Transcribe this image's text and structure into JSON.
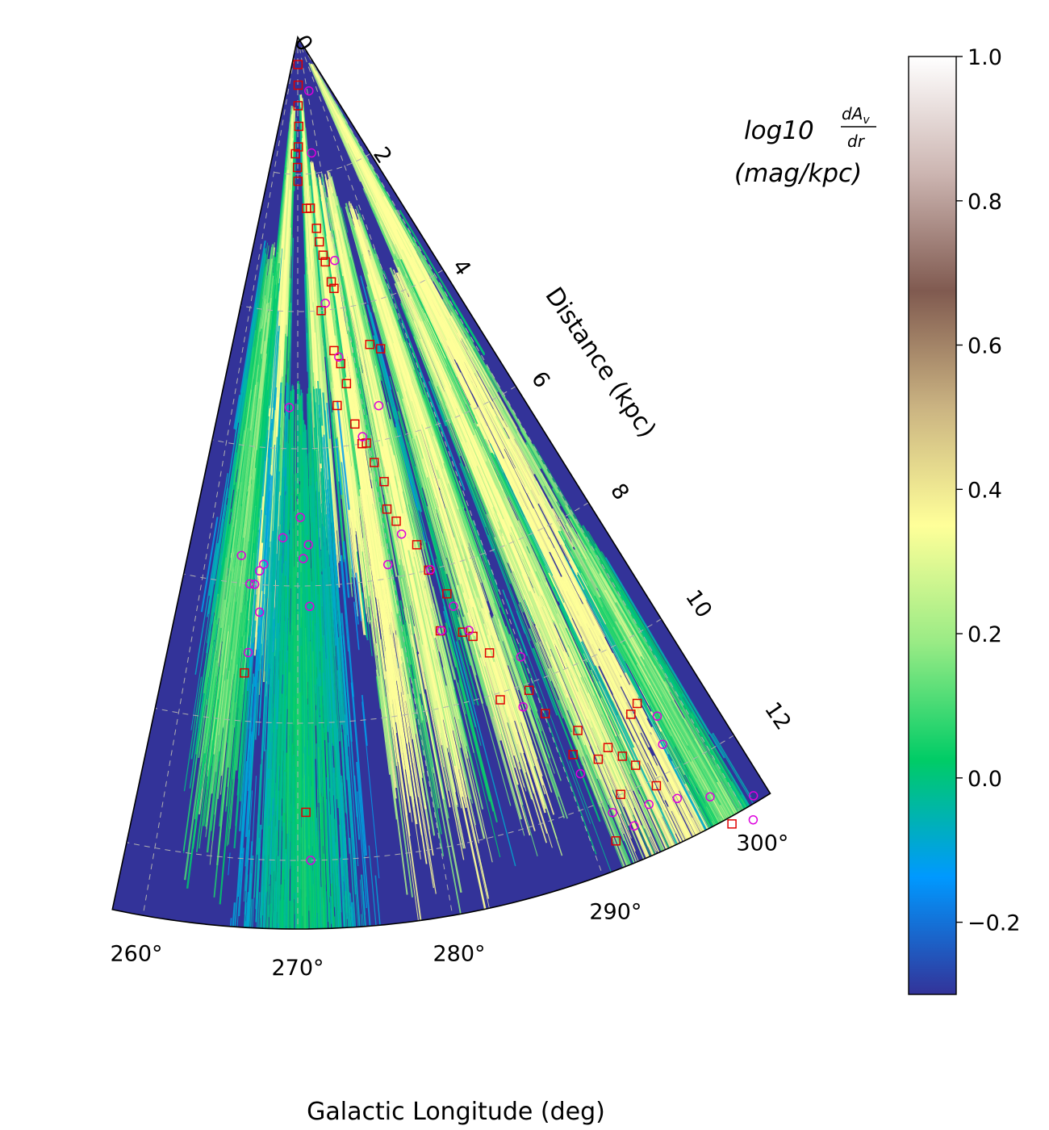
{
  "chart_data": {
    "type": "heatmap",
    "projection": "polar-wedge",
    "xlabel": "Galactic Longitude (deg)",
    "radial_label": "Distance (kpc)",
    "longitude_range": [
      258,
      302
    ],
    "distance_range": [
      0,
      13
    ],
    "longitude_ticks": [
      "260°",
      "270°",
      "280°",
      "290°",
      "300°"
    ],
    "distance_ticks": [
      "0",
      "2",
      "4",
      "6",
      "8",
      "10",
      "12"
    ],
    "grid": true,
    "colorbar": {
      "title_main": "log10",
      "title_frac_num": "dA",
      "title_frac_sub": "v",
      "title_frac_den": "dr",
      "units": "(mag/kpc)",
      "range": [
        -0.3,
        1.0
      ],
      "tick_labels": [
        "1.0",
        "0.8",
        "0.6",
        "0.4",
        "0.2",
        "0.0",
        "−0.2"
      ],
      "colormap": "terrain",
      "colors": [
        "#333399",
        "#0099ff",
        "#00cc66",
        "#99eb85",
        "#ffff99",
        "#cbb482",
        "#805a50",
        "#ccb5b1",
        "#ffffff"
      ]
    },
    "square_markers": {
      "color": "#e00000",
      "points": [
        [
          270.5,
          0.4
        ],
        [
          270.5,
          0.7
        ],
        [
          270.3,
          1.0
        ],
        [
          270.7,
          1.3
        ],
        [
          270.3,
          1.6
        ],
        [
          268.9,
          1.7
        ],
        [
          269.9,
          1.9
        ],
        [
          270.1,
          2.1
        ],
        [
          272.9,
          2.5
        ],
        [
          274.2,
          2.5
        ],
        [
          275.6,
          2.8
        ],
        [
          276.0,
          3.0
        ],
        [
          276.6,
          3.2
        ],
        [
          277.0,
          3.3
        ],
        [
          277.8,
          3.6
        ],
        [
          278.2,
          3.7
        ],
        [
          274.9,
          4.0
        ],
        [
          276.6,
          4.6
        ],
        [
          277.5,
          4.8
        ],
        [
          278.0,
          5.1
        ],
        [
          276.1,
          5.4
        ],
        [
          278.4,
          5.7
        ],
        [
          279.0,
          6.0
        ],
        [
          279.6,
          6.0
        ],
        [
          280.2,
          6.3
        ],
        [
          281.0,
          6.6
        ],
        [
          280.7,
          7.0
        ],
        [
          281.5,
          7.2
        ],
        [
          283.2,
          7.6
        ],
        [
          283.8,
          8.0
        ],
        [
          285.0,
          8.4
        ],
        [
          283.5,
          8.9
        ],
        [
          285.5,
          9.0
        ],
        [
          286.3,
          9.1
        ],
        [
          287.3,
          9.4
        ],
        [
          287.0,
          10.1
        ],
        [
          289.5,
          10.1
        ],
        [
          290.1,
          10.5
        ],
        [
          291.0,
          11.2
        ],
        [
          292.0,
          10.9
        ],
        [
          292.6,
          11.4
        ],
        [
          293.6,
          11.3
        ],
        [
          294.3,
          11.5
        ],
        [
          294.9,
          11.7
        ],
        [
          295.6,
          12.1
        ],
        [
          296.2,
          11.0
        ],
        [
          297.0,
          10.9
        ],
        [
          298.9,
          13.1
        ],
        [
          265.2,
          9.3
        ],
        [
          270.6,
          11.3
        ],
        [
          291.6,
          12.6
        ],
        [
          293.1,
          12.0
        ],
        [
          283.2,
          4.6
        ],
        [
          284.9,
          4.7
        ]
      ]
    },
    "circle_markers": {
      "color": "#dd00dd",
      "points": [
        [
          279.4,
          3.3
        ],
        [
          275.9,
          3.9
        ],
        [
          277.3,
          4.7
        ],
        [
          268.7,
          5.4
        ],
        [
          279.2,
          5.9
        ],
        [
          282.4,
          5.5
        ],
        [
          268.3,
          7.3
        ],
        [
          265.0,
          8.0
        ],
        [
          266.3,
          7.7
        ],
        [
          265.9,
          7.8
        ],
        [
          265.5,
          8.0
        ],
        [
          266.2,
          8.4
        ],
        [
          270.3,
          7.0
        ],
        [
          270.6,
          7.6
        ],
        [
          271.2,
          7.4
        ],
        [
          271.2,
          8.3
        ],
        [
          263.8,
          7.6
        ],
        [
          265.4,
          9.0
        ],
        [
          279.7,
          7.8
        ],
        [
          281.8,
          7.4
        ],
        [
          284.0,
          8.0
        ],
        [
          283.6,
          8.9
        ],
        [
          285.3,
          8.6
        ],
        [
          286.1,
          9.0
        ],
        [
          289.8,
          9.6
        ],
        [
          288.6,
          10.3
        ],
        [
          291.0,
          11.5
        ],
        [
          292.1,
          12.2
        ],
        [
          293.1,
          12.5
        ],
        [
          294.6,
          12.3
        ],
        [
          296.5,
          12.4
        ],
        [
          297.3,
          11.6
        ],
        [
          297.9,
          11.2
        ],
        [
          298.5,
          12.6
        ],
        [
          300.2,
          13.2
        ],
        [
          301.0,
          12.9
        ],
        [
          270.9,
          12.0
        ],
        [
          276.8,
          1.7
        ],
        [
          281.7,
          0.8
        ]
      ]
    }
  }
}
